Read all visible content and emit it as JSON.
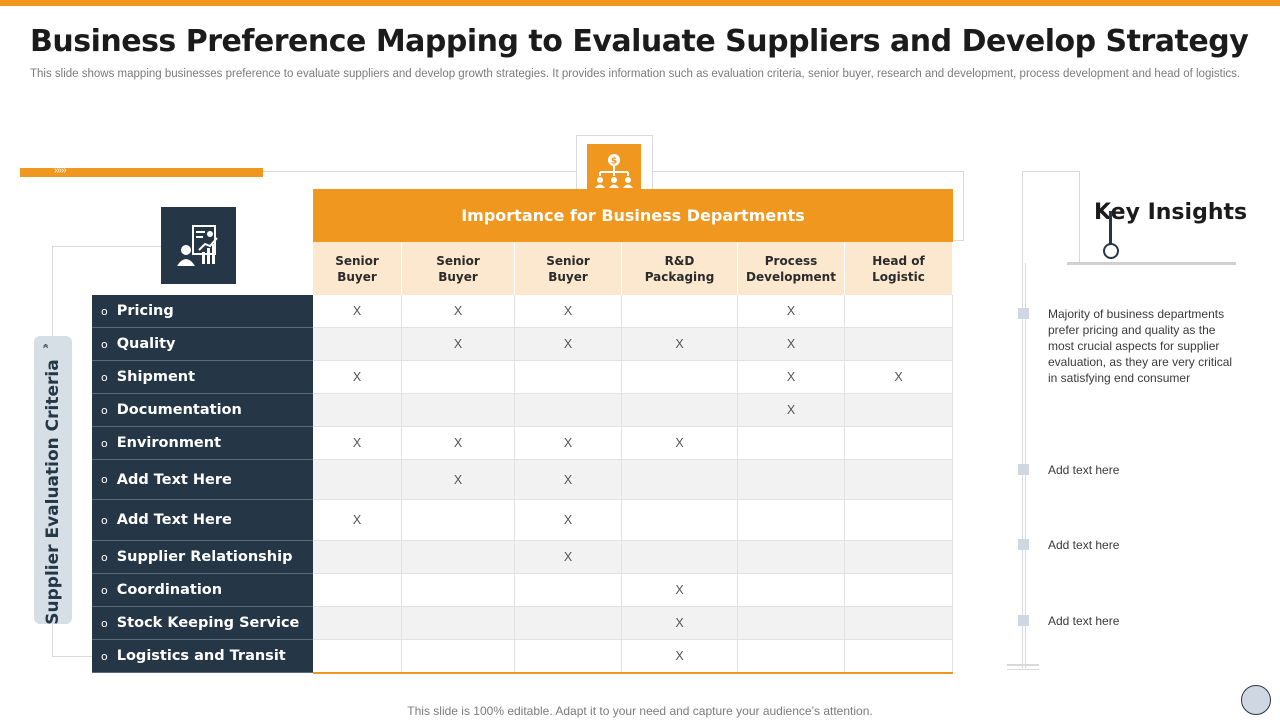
{
  "title": "Business Preference Mapping to Evaluate Suppliers and Develop Strategy",
  "subtitle": "This slide shows mapping businesses preference to evaluate suppliers and develop growth strategies. It provides information such as evaluation criteria, senior buyer, research and development, process development and head of logistics.",
  "criteria_label": "Supplier Evaluation Criteria",
  "table": {
    "heading": "Importance for Business Departments",
    "columns": [
      "Senior\nBuyer",
      "Senior\nBuyer",
      "Senior\nBuyer",
      "R&D\nPackaging",
      "Process\nDevelopment",
      "Head of\nLogistic"
    ],
    "bullet": "o",
    "rows": [
      {
        "label": "Pricing",
        "cells": [
          "X",
          "X",
          "X",
          "",
          "X",
          ""
        ]
      },
      {
        "label": "Quality",
        "cells": [
          "",
          "X",
          "X",
          "X",
          "X",
          ""
        ]
      },
      {
        "label": "Shipment",
        "cells": [
          "X",
          "",
          "",
          "",
          "X",
          "X"
        ]
      },
      {
        "label": "Documentation",
        "cells": [
          "",
          "",
          "",
          "",
          "X",
          ""
        ]
      },
      {
        "label": "Environment",
        "cells": [
          "X",
          "X",
          "X",
          "X",
          "",
          ""
        ]
      },
      {
        "label": "Add Text Here",
        "cells": [
          "",
          "X",
          "X",
          "",
          "",
          ""
        ]
      },
      {
        "label": "Add Text Here",
        "cells": [
          "X",
          "",
          "X",
          "",
          "",
          ""
        ]
      },
      {
        "label": "Supplier Relationship",
        "cells": [
          "",
          "",
          "X",
          "",
          "",
          ""
        ]
      },
      {
        "label": "Coordination",
        "cells": [
          "",
          "",
          "",
          "X",
          "",
          ""
        ]
      },
      {
        "label": "Stock Keeping Service",
        "cells": [
          "",
          "",
          "",
          "X",
          "",
          ""
        ]
      },
      {
        "label": "Logistics and Transit",
        "cells": [
          "",
          "",
          "",
          "X",
          "",
          ""
        ]
      }
    ]
  },
  "key_insights": {
    "title": "Key Insights",
    "items": [
      "Majority of business departments prefer pricing and quality as the most crucial aspects for supplier evaluation, as they are very critical in satisfying end consumer",
      "Add text here",
      "Add text here",
      "Add text here"
    ]
  },
  "footer": "This slide is 100% editable. Adapt it to your need and capture your audience’s attention.",
  "icons": {
    "org": "org-chart-dollar-icon",
    "report": "report-analytics-icon",
    "chevron": "double-chevron-icon"
  },
  "colors": {
    "accent": "#f0971f",
    "navy": "#253746",
    "header_tint": "#fce8cf"
  }
}
